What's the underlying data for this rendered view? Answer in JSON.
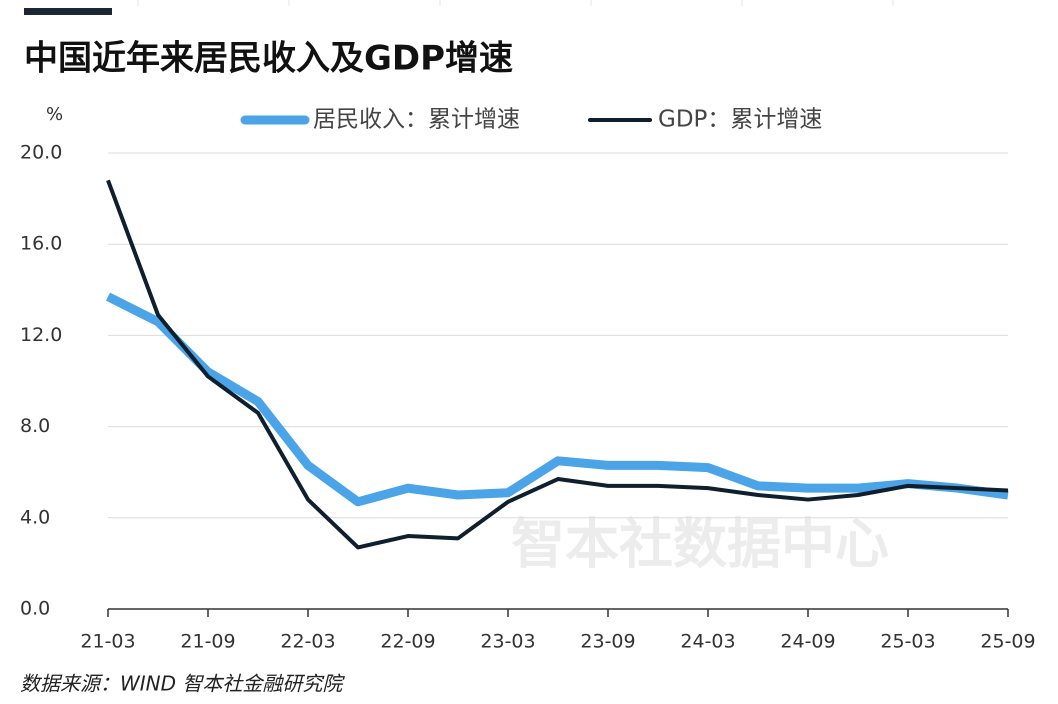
{
  "chart_data": {
    "type": "line",
    "title": "中国近年来居民收入及GDP增速",
    "y_unit": "%",
    "source": "数据来源：WIND 智本社金融研究院",
    "watermark": "智本社数据中心",
    "categories": [
      "21-03",
      null,
      "21-09",
      null,
      "22-03",
      null,
      "22-09",
      null,
      "23-03",
      null,
      "23-09",
      null,
      "24-03",
      null,
      "24-09",
      null,
      "25-03",
      null,
      "25-09"
    ],
    "series": [
      {
        "name": "居民收入：累计增速",
        "color": "#4ba3e8",
        "values": [
          13.7,
          12.6,
          10.4,
          9.1,
          6.3,
          4.7,
          5.3,
          5.0,
          5.1,
          6.5,
          6.3,
          6.3,
          6.2,
          5.4,
          5.3,
          5.3,
          5.5,
          5.3,
          5.0
        ]
      },
      {
        "name": "GDP：累计增速",
        "color": "#0f1f2e",
        "values": [
          18.8,
          12.9,
          10.2,
          8.6,
          4.8,
          2.7,
          3.2,
          3.1,
          4.7,
          5.7,
          5.4,
          5.4,
          5.3,
          5.0,
          4.8,
          5.0,
          5.4,
          5.3,
          5.2
        ]
      }
    ],
    "ylim": [
      0,
      20
    ],
    "yticks": [
      {
        "value": 0,
        "label": "0.0"
      },
      {
        "value": 4,
        "label": "4.0"
      },
      {
        "value": 8,
        "label": "8.0"
      },
      {
        "value": 12,
        "label": "12.0"
      },
      {
        "value": 16,
        "label": "16.0"
      },
      {
        "value": 20,
        "label": "20.0"
      }
    ],
    "grid": true
  }
}
